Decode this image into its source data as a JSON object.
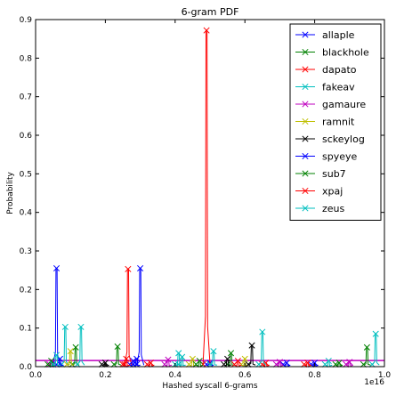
{
  "chart_data": {
    "type": "line",
    "title": "6-gram PDF",
    "xlabel": "Hashed syscall 6-grams",
    "ylabel": "Probability",
    "x_offset_label": "1e16",
    "xlim": [
      0,
      1.0
    ],
    "ylim": [
      0,
      0.9
    ],
    "x_ticks": [
      "0.0",
      "0.2",
      "0.4",
      "0.6",
      "0.8",
      "1.0"
    ],
    "y_ticks": [
      "0.0",
      "0.1",
      "0.2",
      "0.3",
      "0.4",
      "0.5",
      "0.6",
      "0.7",
      "0.8",
      "0.9"
    ],
    "grid": false,
    "legend_position": "top-right",
    "marker": "x",
    "series": [
      {
        "name": "allaple",
        "color": "#0000ff",
        "peaks": [
          [
            0.06,
            0.255
          ],
          [
            0.3,
            0.255
          ],
          [
            0.29,
            0.02
          ],
          [
            0.5,
            0.01
          ],
          [
            0.72,
            0.01
          ]
        ]
      },
      {
        "name": "blackhole",
        "color": "#008000",
        "peaks": [
          [
            0.115,
            0.05
          ],
          [
            0.235,
            0.052
          ],
          [
            0.56,
            0.035
          ],
          [
            0.87,
            0.01
          ]
        ]
      },
      {
        "name": "dapato",
        "color": "#ff0000",
        "peaks": [
          [
            0.265,
            0.253
          ],
          [
            0.49,
            0.872
          ],
          [
            0.33,
            0.01
          ],
          [
            0.66,
            0.01
          ]
        ]
      },
      {
        "name": "fakeav",
        "color": "#00bfbf",
        "peaks": [
          [
            0.085,
            0.103
          ],
          [
            0.13,
            0.103
          ],
          [
            0.41,
            0.035
          ],
          [
            0.51,
            0.04
          ],
          [
            0.65,
            0.09
          ],
          [
            0.975,
            0.085
          ]
        ]
      },
      {
        "name": "gamaure",
        "color": "#bf00bf",
        "peaks": [
          [
            0.05,
            0.012
          ],
          [
            0.38,
            0.018
          ],
          [
            0.7,
            0.012
          ],
          [
            0.9,
            0.012
          ]
        ]
      },
      {
        "name": "ramnit",
        "color": "#bfbf00",
        "peaks": [
          [
            0.1,
            0.04
          ],
          [
            0.45,
            0.02
          ],
          [
            0.6,
            0.02
          ]
        ]
      },
      {
        "name": "sckeylog",
        "color": "#000000",
        "peaks": [
          [
            0.62,
            0.055
          ],
          [
            0.55,
            0.02
          ],
          [
            0.2,
            0.01
          ]
        ]
      },
      {
        "name": "spyeye",
        "color": "#0000ff",
        "peaks": [
          [
            0.07,
            0.02
          ],
          [
            0.28,
            0.015
          ],
          [
            0.8,
            0.01
          ]
        ]
      },
      {
        "name": "sub7",
        "color": "#008000",
        "peaks": [
          [
            0.045,
            0.015
          ],
          [
            0.95,
            0.05
          ],
          [
            0.47,
            0.015
          ]
        ]
      },
      {
        "name": "xpaj",
        "color": "#ff0000",
        "peaks": [
          [
            0.26,
            0.02
          ],
          [
            0.58,
            0.015
          ],
          [
            0.78,
            0.01
          ]
        ]
      },
      {
        "name": "zeus",
        "color": "#00bfbf",
        "peaks": [
          [
            0.06,
            0.03
          ],
          [
            0.42,
            0.025
          ],
          [
            0.84,
            0.015
          ]
        ]
      }
    ],
    "baseline_band": {
      "color": "#bf00bf",
      "value": 0.016
    }
  }
}
